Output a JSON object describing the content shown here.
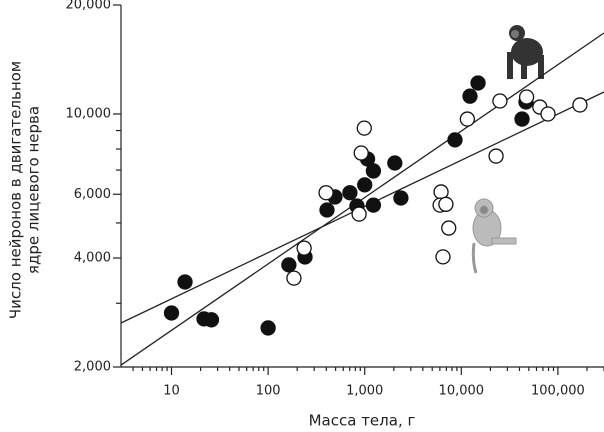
{
  "chart_data": {
    "type": "scatter",
    "xlabel": "Масса тела, г",
    "ylabel": [
      "Число нейронов в двигательном",
      "ядре лицевого нерва"
    ],
    "xlog": true,
    "ylog": true,
    "xlim": [
      3,
      300000
    ],
    "ylim": [
      2000,
      20000
    ],
    "xticks": [
      10,
      100,
      {
        "value": 1000,
        "label": "1,000"
      },
      {
        "value": 10000,
        "label": "10,000"
      },
      {
        "value": 100000,
        "label": "100,000"
      }
    ],
    "xminor": [
      4,
      5,
      6,
      7,
      8,
      9,
      20,
      30,
      40,
      50,
      60,
      70,
      80,
      90,
      200,
      300,
      400,
      500,
      600,
      700,
      800,
      900,
      2000,
      3000,
      4000,
      5000,
      6000,
      7000,
      8000,
      9000,
      20000,
      30000,
      40000,
      50000,
      60000,
      70000,
      80000,
      90000,
      200000,
      300000
    ],
    "yticks": [
      {
        "value": 2000,
        "label": "2,000"
      },
      {
        "value": 4000,
        "label": "4,000"
      },
      {
        "value": 6000,
        "label": "6,000"
      },
      {
        "value": 10000,
        "label": "10,000"
      },
      {
        "value": 20000,
        "label": "20,000"
      }
    ],
    "yminor": [
      3000,
      5000,
      7000,
      8000,
      9000
    ],
    "series": [
      {
        "marker": "filled",
        "color": "#111111",
        "x": [
          10,
          13.8,
          21.7,
          25.9,
          100,
          164,
          241,
          407,
          492,
          703,
          831,
          1000,
          1070,
          1230,
          1230,
          2050,
          2370,
          8600,
          12300,
          14900,
          42500,
          46700
        ],
        "values": [
          2820,
          3435,
          2716,
          2700,
          2564,
          3830,
          4027,
          5430,
          5900,
          6060,
          5570,
          6370,
          7510,
          6960,
          5600,
          7320,
          5860,
          8480,
          11200,
          12180,
          9680,
          10790
        ]
      },
      {
        "marker": "open",
        "color": "#111111",
        "x": [
          185,
          236,
          398,
          875,
          920,
          990,
          6170,
          6030,
          6930,
          7410,
          6460,
          11550,
          22900,
          25100,
          47400,
          65000,
          79000,
          169000
        ],
        "values": [
          3520,
          4260,
          6060,
          5290,
          7800,
          9140,
          6090,
          5600,
          5630,
          4840,
          4030,
          9680,
          7650,
          10860,
          11140,
          10450,
          10000,
          10590
        ]
      }
    ],
    "lines": [
      {
        "x": [
          3,
          300000
        ],
        "values": [
          2025,
          16740
        ]
      },
      {
        "x": [
          3,
          300000
        ],
        "values": [
          2646,
          11500
        ]
      }
    ]
  }
}
